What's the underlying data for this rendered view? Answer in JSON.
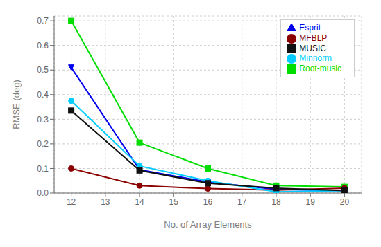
{
  "chart_data": {
    "type": "line",
    "xlabel": "No. of Array Elements",
    "ylabel": "RMSE (deg)",
    "x": [
      12,
      14,
      16,
      18,
      20
    ],
    "series": [
      {
        "name": "Root-music",
        "color": "#00dd00",
        "marker": "square",
        "values": [
          0.7,
          0.205,
          0.1,
          0.03,
          0.025
        ]
      },
      {
        "name": "Esprit",
        "color": "#0000ee",
        "marker": "triangle_down",
        "values": [
          0.51,
          0.095,
          0.045,
          0.015,
          0.01
        ]
      },
      {
        "name": "MFBLP",
        "color": "#8B0000",
        "marker": "circle",
        "values": [
          0.1,
          0.03,
          0.018,
          0.012,
          0.02
        ]
      },
      {
        "name": "Minnorm",
        "color": "#00ccff",
        "marker": "circle",
        "values": [
          0.375,
          0.11,
          0.05,
          0.005,
          0.01
        ]
      },
      {
        "name": "MUSIC",
        "color": "#111111",
        "marker": "square",
        "values": [
          0.335,
          0.092,
          0.04,
          0.02,
          0.01
        ]
      }
    ],
    "xlim": [
      11.5,
      20.5
    ],
    "ylim": [
      0,
      0.72
    ],
    "xticks": [
      12,
      13,
      14,
      15,
      16,
      17,
      18,
      19,
      20
    ],
    "yticks": [
      {
        "value": 0,
        "label": "0.0"
      },
      0.1,
      0.2,
      0.3,
      0.4,
      0.5,
      0.6,
      0.7
    ],
    "grid": true,
    "legend": "upper right"
  }
}
